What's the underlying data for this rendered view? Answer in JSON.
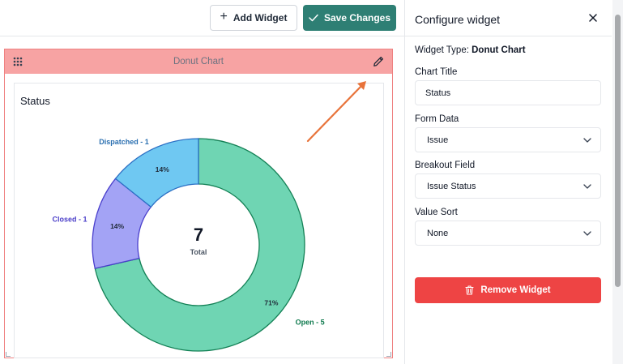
{
  "toolbar": {
    "add_widget_label": "Add Widget",
    "save_changes_label": "Save Changes"
  },
  "widget": {
    "header_title": "Donut Chart",
    "card_title": "Status"
  },
  "chart_data": {
    "type": "pie",
    "variant": "donut",
    "title": "Status",
    "categories": [
      "Open",
      "Closed",
      "Dispatched"
    ],
    "values": [
      5,
      1,
      1
    ],
    "slice_labels": [
      "Open - 5",
      "Closed - 1",
      "Dispatched - 1"
    ],
    "percent_labels": [
      "71%",
      "14%",
      "14%"
    ],
    "colors": [
      "#6fd5b3",
      "#a3a3f5",
      "#6fc8f2"
    ],
    "stroke_colors": [
      "#138055",
      "#4a3fcc",
      "#2b6fc4"
    ],
    "label_colors": [
      "#0f7a4e",
      "#4b3fc9",
      "#2a6fb0"
    ],
    "center_value": "7",
    "center_label": "Total"
  },
  "panel": {
    "title": "Configure widget",
    "widget_type_label": "Widget Type:",
    "widget_type_value": "Donut Chart",
    "chart_title_label": "Chart Title",
    "chart_title_value": "Status",
    "form_data_label": "Form Data",
    "form_data_value": "Issue",
    "breakout_label": "Breakout Field",
    "breakout_value": "Issue Status",
    "value_sort_label": "Value Sort",
    "value_sort_value": "None",
    "remove_label": "Remove Widget"
  },
  "icons": {
    "add": "plus-icon",
    "save": "check-icon",
    "drag": "drag-handle-icon",
    "edit": "pencil-icon",
    "close": "close-icon",
    "dropdown": "chevron-down-icon",
    "remove": "trash-icon"
  },
  "colors": {
    "save_button": "#2e7f74",
    "remove_button": "#ee4444",
    "widget_header": "#f7a3a3",
    "widget_border": "#ef8080",
    "annotation_arrow": "#e8733a"
  }
}
